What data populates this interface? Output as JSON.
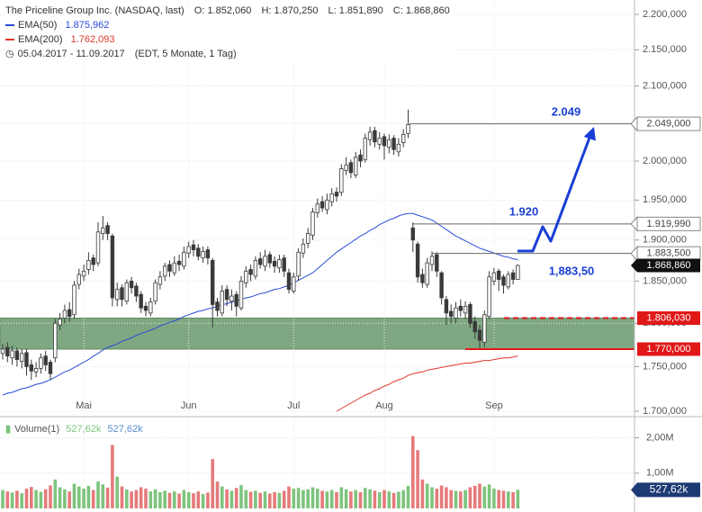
{
  "header": {
    "title": "The Priceline Group Inc. (NASDAQ, last)",
    "ohlc": [
      {
        "key": "O:",
        "value": "1.852,060"
      },
      {
        "key": "H:",
        "value": "1.870,250"
      },
      {
        "key": "L:",
        "value": "1.851,890"
      },
      {
        "key": "C:",
        "value": "1.868,860"
      }
    ],
    "date_range": "05.04.2017 - 11.09.2017",
    "range_note": "(EDT, 5 Monate, 1 Tag)"
  },
  "chart_data": [
    {
      "type": "candlestick",
      "log_scale": true,
      "grid": true,
      "categories": [
        null,
        null,
        null,
        null,
        null,
        null,
        null,
        null,
        null,
        null,
        null,
        null,
        null,
        null,
        null,
        null,
        null,
        "Mai",
        null,
        null,
        null,
        null,
        null,
        null,
        null,
        null,
        null,
        null,
        null,
        null,
        null,
        null,
        null,
        null,
        null,
        null,
        null,
        null,
        null,
        "Jun",
        null,
        null,
        null,
        null,
        null,
        null,
        null,
        null,
        null,
        null,
        null,
        null,
        null,
        null,
        null,
        null,
        null,
        null,
        null,
        null,
        null,
        "Jul",
        null,
        null,
        null,
        null,
        null,
        null,
        null,
        null,
        null,
        null,
        null,
        null,
        null,
        null,
        null,
        null,
        null,
        null,
        "Aug",
        null,
        null,
        null,
        null,
        null,
        null,
        null,
        null,
        null,
        null,
        null,
        null,
        null,
        null,
        null,
        null,
        null,
        null,
        null,
        null,
        null,
        null,
        "Sep",
        null,
        null,
        null,
        null,
        null
      ],
      "open": [
        1765,
        1772,
        1760,
        1768,
        1756,
        1766,
        1752,
        1744,
        1748,
        1762,
        1755,
        1760,
        1798,
        1806,
        1816,
        1810,
        1846,
        1856,
        1864,
        1878,
        1872,
        1908,
        1918,
        1905,
        1828,
        1842,
        1826,
        1850,
        1844,
        1834,
        1820,
        1812,
        1826,
        1846,
        1856,
        1870,
        1860,
        1874,
        1868,
        1884,
        1894,
        1890,
        1878,
        1888,
        1875,
        1825,
        1812,
        1840,
        1826,
        1834,
        1818,
        1848,
        1864,
        1856,
        1877,
        1868,
        1882,
        1874,
        1866,
        1878,
        1860,
        1838,
        1856,
        1884,
        1896,
        1906,
        1934,
        1948,
        1938,
        1948,
        1960,
        1960,
        1988,
        1998,
        1982,
        2008,
        2002,
        2028,
        2040,
        2022,
        2032,
        2018,
        2030,
        2012,
        2024,
        2036,
        1915,
        1895,
        1858,
        1846,
        1870,
        1882,
        1860,
        1828,
        1814,
        1806,
        1820,
        1812,
        1822,
        1802,
        1792,
        1778,
        1808,
        1850,
        1862,
        1855,
        1843,
        1860,
        1852.06
      ],
      "high": [
        1776,
        1778,
        1774,
        1772,
        1770,
        1770,
        1758,
        1755,
        1765,
        1768,
        1758,
        1805,
        1812,
        1822,
        1825,
        1850,
        1865,
        1870,
        1885,
        1882,
        1922,
        1930,
        1922,
        1908,
        1848,
        1846,
        1852,
        1855,
        1848,
        1838,
        1825,
        1830,
        1852,
        1862,
        1872,
        1875,
        1880,
        1882,
        1892,
        1898,
        1900,
        1895,
        1892,
        1892,
        1878,
        1830,
        1845,
        1845,
        1840,
        1838,
        1856,
        1868,
        1870,
        1880,
        1885,
        1888,
        1886,
        1880,
        1882,
        1882,
        1865,
        1860,
        1890,
        1902,
        1915,
        1940,
        1952,
        1955,
        1958,
        1965,
        1966,
        1996,
        2005,
        2002,
        2012,
        2015,
        2036,
        2045,
        2045,
        2038,
        2036,
        2035,
        2034,
        2030,
        2042,
        2068,
        1922,
        1898,
        1865,
        1878,
        1886,
        1885,
        1862,
        1832,
        1822,
        1825,
        1828,
        1826,
        1825,
        1808,
        1798,
        1815,
        1862,
        1866,
        1865,
        1858,
        1862,
        1864,
        1870.25
      ],
      "low": [
        1758,
        1755,
        1752,
        1750,
        1748,
        1740,
        1735,
        1738,
        1742,
        1745,
        1735,
        1755,
        1792,
        1800,
        1802,
        1805,
        1840,
        1850,
        1858,
        1862,
        1868,
        1900,
        1900,
        1820,
        1820,
        1820,
        1822,
        1835,
        1825,
        1812,
        1808,
        1808,
        1822,
        1840,
        1850,
        1855,
        1856,
        1862,
        1864,
        1878,
        1880,
        1875,
        1872,
        1870,
        1795,
        1808,
        1808,
        1820,
        1815,
        1808,
        1815,
        1842,
        1850,
        1852,
        1865,
        1862,
        1866,
        1860,
        1860,
        1855,
        1835,
        1835,
        1850,
        1878,
        1890,
        1900,
        1928,
        1935,
        1932,
        1942,
        1948,
        1955,
        1982,
        1978,
        1978,
        1992,
        1998,
        2020,
        2018,
        2015,
        2002,
        2010,
        2008,
        2006,
        2018,
        2030,
        1885,
        1848,
        1842,
        1842,
        1862,
        1855,
        1822,
        1798,
        1800,
        1800,
        1808,
        1805,
        1795,
        1782,
        1770,
        1772,
        1805,
        1845,
        1838,
        1835,
        1840,
        1846,
        1851.89
      ],
      "close": [
        1770,
        1762,
        1768,
        1758,
        1765,
        1750,
        1745,
        1748,
        1760,
        1752,
        1742,
        1800,
        1805,
        1815,
        1808,
        1845,
        1858,
        1862,
        1875,
        1870,
        1910,
        1915,
        1908,
        1830,
        1840,
        1828,
        1848,
        1842,
        1832,
        1818,
        1815,
        1825,
        1848,
        1855,
        1868,
        1862,
        1872,
        1870,
        1885,
        1892,
        1888,
        1880,
        1886,
        1878,
        1822,
        1815,
        1838,
        1828,
        1832,
        1820,
        1850,
        1862,
        1858,
        1875,
        1870,
        1880,
        1872,
        1868,
        1876,
        1862,
        1840,
        1855,
        1885,
        1895,
        1908,
        1935,
        1945,
        1940,
        1950,
        1958,
        1955,
        1990,
        1995,
        1985,
        2005,
        2000,
        2030,
        2038,
        2025,
        2030,
        2020,
        2028,
        2015,
        2022,
        2035,
        2048,
        1900,
        1855,
        1848,
        1872,
        1880,
        1862,
        1830,
        1812,
        1808,
        1818,
        1815,
        1820,
        1800,
        1790,
        1780,
        1810,
        1855,
        1860,
        1852,
        1845,
        1858,
        1852,
        1868.86
      ],
      "up_color": "#ffffff",
      "down_color": "#3a3a3a",
      "wick_color": "#3a3a3a",
      "series": [
        {
          "name": "EMA(50)",
          "value_label": "1.875,962",
          "color": "#2a4bd7",
          "values": [
            1718,
            1720,
            1721,
            1723,
            1725,
            1726,
            1728,
            1730,
            1731,
            1733,
            1735,
            1738,
            1741,
            1744,
            1746,
            1749,
            1752,
            1755,
            1758,
            1762,
            1765,
            1769,
            1772,
            1774,
            1776,
            1779,
            1781,
            1783,
            1786,
            1788,
            1790,
            1792,
            1794,
            1797,
            1799,
            1801,
            1803,
            1805,
            1808,
            1810,
            1812,
            1814,
            1815,
            1817,
            1818,
            1820,
            1822,
            1823,
            1825,
            1826,
            1828,
            1830,
            1831,
            1833,
            1835,
            1836,
            1838,
            1840,
            1841,
            1843,
            1845,
            1848,
            1851,
            1854,
            1857,
            1860,
            1865,
            1870,
            1875,
            1880,
            1885,
            1889,
            1893,
            1897,
            1901,
            1905,
            1908,
            1912,
            1915,
            1919,
            1922,
            1925,
            1927,
            1930,
            1932,
            1933,
            1933,
            1931,
            1929,
            1927,
            1925,
            1921,
            1917,
            1913,
            1909,
            1905,
            1902,
            1899,
            1896,
            1893,
            1890,
            1888,
            1886,
            1884,
            1882,
            1880,
            1879,
            1877,
            1875.962
          ]
        },
        {
          "name": "EMA(200)",
          "value_label": "1.762,093",
          "color": "#e0352b",
          "values": [
            null,
            null,
            null,
            null,
            null,
            null,
            null,
            null,
            null,
            null,
            null,
            null,
            null,
            null,
            null,
            null,
            null,
            null,
            null,
            null,
            null,
            null,
            null,
            null,
            null,
            null,
            null,
            null,
            null,
            null,
            null,
            null,
            null,
            null,
            null,
            null,
            null,
            null,
            null,
            null,
            null,
            null,
            null,
            null,
            null,
            null,
            null,
            null,
            null,
            null,
            null,
            null,
            null,
            null,
            null,
            null,
            null,
            null,
            null,
            null,
            null,
            null,
            null,
            null,
            null,
            null,
            null,
            null,
            null,
            null,
            1700,
            1703,
            1706,
            1709,
            1712,
            1715,
            1718,
            1720,
            1723,
            1725,
            1728,
            1730,
            1733,
            1735,
            1737,
            1740,
            1742,
            1743,
            1744,
            1746,
            1747,
            1748,
            1749,
            1750,
            1751,
            1752,
            1753,
            1754,
            1754,
            1755,
            1756,
            1757,
            1757,
            1758,
            1759,
            1760,
            1760,
            1761,
            1762.093
          ]
        }
      ],
      "ylim": [
        1700,
        2200
      ],
      "yticks": [
        {
          "value": 1700,
          "label": "1.700,000"
        },
        {
          "value": 1750,
          "label": "1.750,000"
        },
        {
          "value": 1800,
          "label": "1.800,000"
        },
        {
          "value": 1850,
          "label": "1.850,000"
        },
        {
          "value": 1900,
          "label": "1.900,000"
        },
        {
          "value": 1950,
          "label": "1.950,000"
        },
        {
          "value": 2000,
          "label": "2.000,000"
        },
        {
          "value": 2050,
          "label": "2.050,000"
        },
        {
          "value": 2100,
          "label": "2.100,000"
        },
        {
          "value": 2150,
          "label": "2.150,000"
        },
        {
          "value": 2200,
          "label": "2.200,000"
        }
      ],
      "zone": {
        "values": [
          1770,
          1806.03
        ],
        "color": "#7fa882"
      },
      "levels": [
        {
          "value": 2049,
          "label": "2.049,000",
          "color": "#666666",
          "style": "solid"
        },
        {
          "value": 1919.99,
          "label": "1.919,990",
          "color": "#666666",
          "style": "solid"
        },
        {
          "value": 1883.5,
          "label": "1.883,500",
          "color": "#666666",
          "style": "solid"
        },
        {
          "value": 1806.03,
          "label": "1.806,030",
          "color": "#e01818",
          "style": "dashed"
        },
        {
          "value": 1770,
          "label": "1.770,000",
          "color": "#e01818",
          "style": "solid"
        }
      ],
      "last_price": {
        "value": 1868.86,
        "label": "1.868,860",
        "color": "#111111"
      },
      "annotations": [
        {
          "text": "2.049"
        },
        {
          "text": "1.920"
        },
        {
          "text": "1,883,50"
        }
      ]
    },
    {
      "type": "bar",
      "title": "Volume(1)",
      "legend_values": [
        "527,62k",
        "527,62k"
      ],
      "values": [
        520000,
        480000,
        450000,
        500000,
        430000,
        560000,
        610000,
        520000,
        470000,
        540000,
        650000,
        820000,
        600000,
        540000,
        480000,
        700000,
        620000,
        560000,
        640000,
        520000,
        760000,
        680000,
        590000,
        1800000,
        900000,
        620000,
        540000,
        480000,
        520000,
        600000,
        560000,
        480000,
        540000,
        460000,
        500000,
        440000,
        480000,
        420000,
        520000,
        460000,
        430000,
        480000,
        410000,
        450000,
        1400000,
        760000,
        620000,
        540000,
        500000,
        580000,
        660000,
        520000,
        470000,
        500000,
        440000,
        480000,
        420000,
        460000,
        440000,
        500000,
        620000,
        560000,
        580000,
        520000,
        540000,
        600000,
        560000,
        500000,
        480000,
        520000,
        460000,
        600000,
        540000,
        480000,
        520000,
        460000,
        580000,
        540000,
        500000,
        460000,
        520000,
        480000,
        440000,
        470000,
        520000,
        640000,
        2050000,
        1650000,
        820000,
        700000,
        600000,
        560000,
        650000,
        600000,
        520000,
        500000,
        480000,
        520000,
        600000,
        640000,
        700000,
        620000,
        680000,
        560000,
        520000,
        500000,
        480000,
        460000,
        527620
      ],
      "up_color": "#7dc47d",
      "down_color": "#e57a7a",
      "ylim": [
        0,
        2500000
      ],
      "yticks": [
        {
          "value": 1000000,
          "label": "1,00M"
        },
        {
          "value": 2000000,
          "label": "2,00M"
        }
      ],
      "current_label": {
        "value": 527620,
        "label": "527,62k",
        "color": "#1c3a73"
      }
    }
  ]
}
